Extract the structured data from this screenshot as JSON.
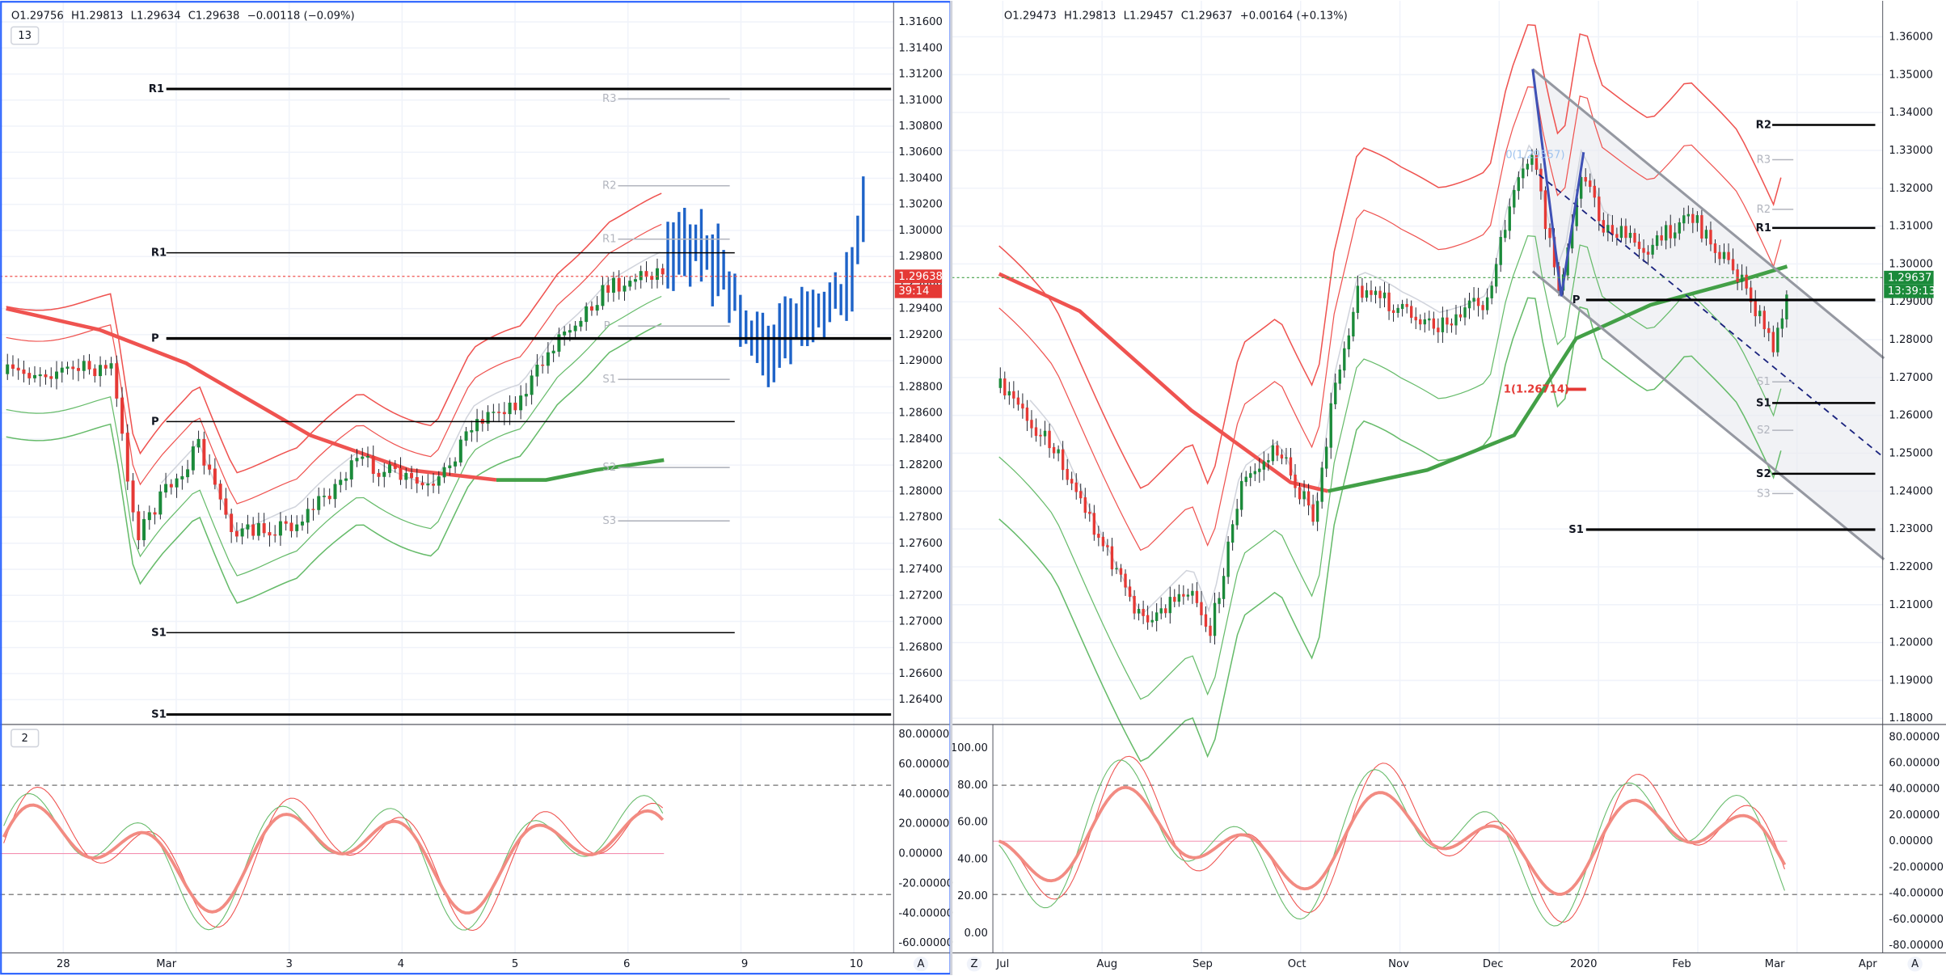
{
  "left_chart": {
    "legend": {
      "open": "O1.29756",
      "high": "H1.29813",
      "low": "L1.29634",
      "close": "C1.29638",
      "change": "−0.00118 (−0.09%)"
    },
    "indicators_toggle": "13",
    "price_scale": [
      "1.31600",
      "1.31400",
      "1.31200",
      "1.31000",
      "1.30800",
      "1.30600",
      "1.30400",
      "1.30200",
      "1.30000",
      "1.29800",
      "1.29600",
      "1.29400",
      "1.29200",
      "1.29000",
      "1.28800",
      "1.28600",
      "1.28400",
      "1.28200",
      "1.28000",
      "1.27800",
      "1.27600",
      "1.27400",
      "1.27200",
      "1.27000",
      "1.26800",
      "1.26600",
      "1.26400"
    ],
    "last_price": "1.29638",
    "countdown": "39:14",
    "pivot_labels": [
      "R1",
      "R3",
      "R2",
      "R1",
      "R1",
      "P",
      "P",
      "S1",
      "P",
      "S2",
      "S3",
      "S1",
      "S1"
    ],
    "oscillator_toggle": "2",
    "oscillator_scale": [
      "80.00000",
      "60.00000",
      "40.00000",
      "20.00000",
      "0.00000",
      "-20.00000",
      "-40.00000",
      "-60.00000"
    ],
    "time_scale": [
      "28",
      "Mar",
      "3",
      "4",
      "5",
      "6",
      "9",
      "10",
      "A"
    ]
  },
  "right_chart": {
    "legend": {
      "open": "O1.29473",
      "high": "H1.29813",
      "low": "L1.29457",
      "close": "C1.29637",
      "change": "+0.00164 (+0.13%)"
    },
    "price_scale": [
      "1.36000",
      "1.35000",
      "1.34000",
      "1.33000",
      "1.32000",
      "1.31000",
      "1.30000",
      "1.29000",
      "1.28000",
      "1.27000",
      "1.26000",
      "1.25000",
      "1.24000",
      "1.23000",
      "1.22000",
      "1.21000",
      "1.20000",
      "1.19000",
      "1.18000"
    ],
    "last_price": "1.29637",
    "countdown": "13:39:13",
    "pivot_labels": [
      "R2",
      "R3",
      "R2",
      "R1",
      "P",
      "S1",
      "S1",
      "S2",
      "S2",
      "S3",
      "S1"
    ],
    "annotations": [
      "0(1.29557)",
      "1(1.26714)"
    ],
    "oscillator_scale_left": [
      "100.00",
      "80.00",
      "60.00",
      "40.00",
      "20.00",
      "0.00"
    ],
    "oscillator_scale_right": [
      "80.00000",
      "60.00000",
      "40.00000",
      "20.00000",
      "0.00000",
      "-20.00000",
      "-40.00000",
      "-60.00000",
      "-80.00000"
    ],
    "time_scale": [
      "Z",
      "Jul",
      "Aug",
      "Sep",
      "Oct",
      "Nov",
      "Dec",
      "2020",
      "Feb",
      "Mar",
      "Apr",
      "A"
    ]
  }
}
